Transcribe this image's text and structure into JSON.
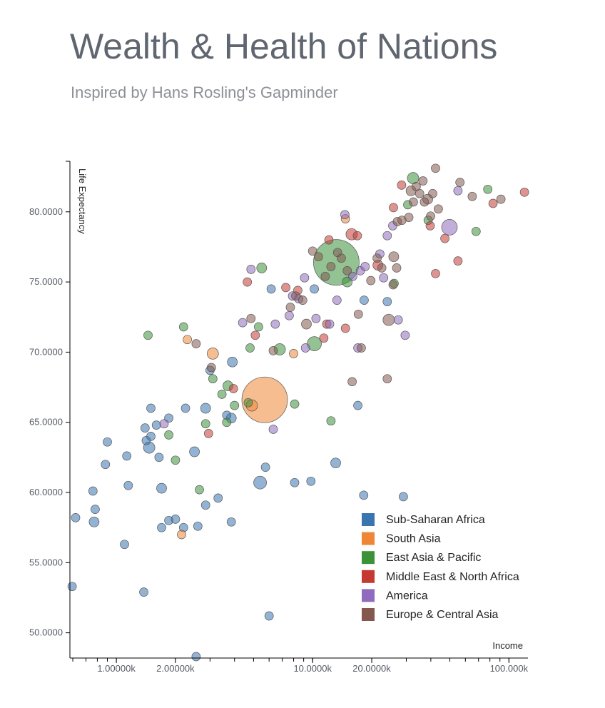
{
  "title": "Wealth & Health of Nations",
  "subtitle": "Inspired by Hans Rosling's Gapminder",
  "chart_data": {
    "type": "scatter",
    "xlabel": "Income",
    "ylabel": "Life Expectancy",
    "x_scale": "log",
    "xlim": [
      580,
      125000
    ],
    "ylim": [
      48.2,
      83.6
    ],
    "x_ticks": [
      {
        "value": 1000,
        "label": "1.00000k"
      },
      {
        "value": 2000,
        "label": "2.00000k"
      },
      {
        "value": 10000,
        "label": "10.0000k"
      },
      {
        "value": 20000,
        "label": "20.0000k"
      },
      {
        "value": 100000,
        "label": "100.000k"
      }
    ],
    "y_ticks": [
      {
        "value": 50,
        "label": "50.0000"
      },
      {
        "value": 55,
        "label": "55.0000"
      },
      {
        "value": 60,
        "label": "60.0000"
      },
      {
        "value": 65,
        "label": "65.0000"
      },
      {
        "value": 70,
        "label": "70.0000"
      },
      {
        "value": 75,
        "label": "75.0000"
      },
      {
        "value": 80,
        "label": "80.0000"
      }
    ],
    "legend_position": "bottom-right",
    "regions": [
      {
        "name": "Sub-Saharan Africa",
        "color": "#3a75b0"
      },
      {
        "name": "South Asia",
        "color": "#ef8636"
      },
      {
        "name": "East Asia & Pacific",
        "color": "#3b9238"
      },
      {
        "name": "Middle East & North Africa",
        "color": "#c53932"
      },
      {
        "name": "America",
        "color": "#8e6bbe"
      },
      {
        "name": "Europe & Central Asia",
        "color": "#84584e"
      }
    ],
    "series": [
      {
        "name": "Sub-Saharan Africa",
        "points": [
          [
            595,
            53.3,
            6
          ],
          [
            620,
            58.2,
            6
          ],
          [
            760,
            60.1,
            6
          ],
          [
            780,
            58.8,
            6
          ],
          [
            770,
            57.9,
            7
          ],
          [
            900,
            63.6,
            6
          ],
          [
            880,
            62.0,
            6
          ],
          [
            1100,
            56.3,
            6
          ],
          [
            1150,
            60.5,
            6
          ],
          [
            1130,
            62.6,
            6
          ],
          [
            1400,
            64.6,
            6
          ],
          [
            1380,
            52.9,
            6
          ],
          [
            1420,
            63.7,
            6
          ],
          [
            1470,
            63.2,
            8
          ],
          [
            1500,
            66.0,
            6
          ],
          [
            1500,
            64.0,
            6
          ],
          [
            1600,
            64.8,
            6
          ],
          [
            1650,
            62.5,
            6
          ],
          [
            1700,
            60.3,
            7
          ],
          [
            1700,
            57.5,
            6
          ],
          [
            1850,
            58.0,
            6
          ],
          [
            1850,
            65.3,
            6
          ],
          [
            2000,
            58.1,
            6
          ],
          [
            2200,
            57.5,
            6
          ],
          [
            2250,
            66.0,
            6
          ],
          [
            2500,
            62.9,
            7
          ],
          [
            2550,
            48.3,
            6
          ],
          [
            2600,
            57.6,
            6
          ],
          [
            2850,
            66.0,
            7
          ],
          [
            2850,
            59.1,
            6
          ],
          [
            3000,
            68.7,
            6
          ],
          [
            3300,
            59.6,
            6
          ],
          [
            3650,
            65.5,
            6
          ],
          [
            3850,
            65.3,
            7
          ],
          [
            3850,
            57.9,
            6
          ],
          [
            3900,
            69.3,
            7
          ],
          [
            5400,
            60.7,
            9
          ],
          [
            5750,
            61.8,
            6
          ],
          [
            6000,
            51.2,
            6
          ],
          [
            6150,
            74.5,
            6
          ],
          [
            8100,
            60.7,
            6
          ],
          [
            9800,
            60.8,
            6
          ],
          [
            10200,
            74.5,
            6
          ],
          [
            13100,
            62.1,
            7
          ],
          [
            17000,
            66.2,
            6
          ],
          [
            18200,
            59.8,
            6
          ],
          [
            18300,
            73.7,
            6
          ],
          [
            24000,
            73.6,
            6
          ],
          [
            29000,
            59.7,
            6
          ]
        ]
      },
      {
        "name": "South Asia",
        "points": [
          [
            2150,
            57.0,
            6
          ],
          [
            2300,
            70.9,
            6
          ],
          [
            3100,
            69.9,
            8
          ],
          [
            4900,
            66.2,
            8
          ],
          [
            5700,
            66.6,
            32
          ],
          [
            8000,
            69.9,
            6
          ],
          [
            14700,
            79.5,
            6
          ]
        ]
      },
      {
        "name": "East Asia & Pacific",
        "points": [
          [
            1450,
            71.2,
            6
          ],
          [
            1850,
            64.1,
            6
          ],
          [
            2000,
            62.3,
            6
          ],
          [
            2200,
            71.8,
            6
          ],
          [
            2650,
            60.2,
            6
          ],
          [
            2850,
            64.9,
            6
          ],
          [
            3100,
            68.1,
            6
          ],
          [
            3450,
            67.0,
            6
          ],
          [
            3650,
            65.0,
            6
          ],
          [
            3700,
            67.6,
            7
          ],
          [
            4000,
            66.2,
            6
          ],
          [
            4700,
            66.4,
            6
          ],
          [
            4800,
            70.3,
            6
          ],
          [
            5300,
            71.8,
            6
          ],
          [
            5500,
            76.0,
            7
          ],
          [
            6800,
            70.2,
            8
          ],
          [
            8100,
            66.3,
            6
          ],
          [
            10200,
            70.6,
            10
          ],
          [
            12400,
            65.1,
            6
          ],
          [
            13200,
            76.4,
            32
          ],
          [
            15000,
            75.0,
            7
          ],
          [
            26000,
            74.9,
            6
          ],
          [
            30500,
            80.5,
            6
          ],
          [
            32500,
            82.4,
            8
          ],
          [
            38800,
            79.4,
            6
          ],
          [
            68000,
            78.6,
            6
          ],
          [
            78000,
            81.6,
            6
          ]
        ]
      },
      {
        "name": "Middle East & North Africa",
        "points": [
          [
            2950,
            64.2,
            6
          ],
          [
            3950,
            67.4,
            6
          ],
          [
            4650,
            75.0,
            6
          ],
          [
            5100,
            71.2,
            6
          ],
          [
            7300,
            74.6,
            6
          ],
          [
            8400,
            74.4,
            6
          ],
          [
            11400,
            71.0,
            6
          ],
          [
            11800,
            72.0,
            6
          ],
          [
            12100,
            78.0,
            6
          ],
          [
            14700,
            71.7,
            6
          ],
          [
            15800,
            78.4,
            8
          ],
          [
            16900,
            78.3,
            6
          ],
          [
            21500,
            76.2,
            7
          ],
          [
            25800,
            80.3,
            6
          ],
          [
            28400,
            81.9,
            6
          ],
          [
            39700,
            79.0,
            6
          ],
          [
            42300,
            75.6,
            6
          ],
          [
            47200,
            78.1,
            6
          ],
          [
            55000,
            76.5,
            6
          ],
          [
            83000,
            80.6,
            6
          ],
          [
            120000,
            81.4,
            6
          ]
        ]
      },
      {
        "name": "America",
        "points": [
          [
            1750,
            64.9,
            6
          ],
          [
            4400,
            72.1,
            6
          ],
          [
            4850,
            75.9,
            6
          ],
          [
            6300,
            64.5,
            6
          ],
          [
            6450,
            72.0,
            6
          ],
          [
            7600,
            72.6,
            6
          ],
          [
            7900,
            74.0,
            6
          ],
          [
            8500,
            73.8,
            6
          ],
          [
            9100,
            75.3,
            6
          ],
          [
            9200,
            70.3,
            6
          ],
          [
            10400,
            72.4,
            6
          ],
          [
            12200,
            72.0,
            6
          ],
          [
            13300,
            73.7,
            6
          ],
          [
            14600,
            79.8,
            6
          ],
          [
            16000,
            75.4,
            6
          ],
          [
            17000,
            70.3,
            6
          ],
          [
            17500,
            75.8,
            6
          ],
          [
            18500,
            76.1,
            6
          ],
          [
            22000,
            77.0,
            6
          ],
          [
            23000,
            75.3,
            6
          ],
          [
            24000,
            78.3,
            6
          ],
          [
            25600,
            79.0,
            6
          ],
          [
            27300,
            72.3,
            6
          ],
          [
            29600,
            71.2,
            6
          ],
          [
            49800,
            78.9,
            11
          ],
          [
            55000,
            81.5,
            6
          ]
        ]
      },
      {
        "name": "Europe & Central Asia",
        "points": [
          [
            2550,
            70.6,
            6
          ],
          [
            3050,
            68.9,
            6
          ],
          [
            4850,
            72.4,
            6
          ],
          [
            6300,
            70.1,
            6
          ],
          [
            7700,
            73.2,
            6
          ],
          [
            8200,
            74.0,
            6
          ],
          [
            8900,
            73.7,
            6
          ],
          [
            9300,
            72.0,
            7
          ],
          [
            10000,
            77.2,
            6
          ],
          [
            10700,
            76.8,
            6
          ],
          [
            11600,
            75.4,
            6
          ],
          [
            12400,
            76.1,
            6
          ],
          [
            13400,
            77.1,
            6
          ],
          [
            14000,
            76.7,
            6
          ],
          [
            15000,
            75.8,
            6
          ],
          [
            15900,
            67.9,
            6
          ],
          [
            17100,
            72.7,
            6
          ],
          [
            17700,
            70.3,
            6
          ],
          [
            19800,
            75.1,
            6
          ],
          [
            21300,
            76.7,
            6
          ],
          [
            22500,
            76.0,
            6
          ],
          [
            24000,
            68.1,
            6
          ],
          [
            24400,
            72.3,
            8
          ],
          [
            25700,
            74.8,
            6
          ],
          [
            25900,
            76.8,
            7
          ],
          [
            26800,
            76.0,
            6
          ],
          [
            27000,
            79.3,
            6
          ],
          [
            28500,
            79.4,
            6
          ],
          [
            30900,
            79.6,
            6
          ],
          [
            31700,
            81.5,
            7
          ],
          [
            32600,
            80.7,
            6
          ],
          [
            33700,
            81.8,
            6
          ],
          [
            35100,
            81.3,
            6
          ],
          [
            36500,
            82.2,
            6
          ],
          [
            37100,
            80.7,
            6
          ],
          [
            38600,
            80.9,
            7
          ],
          [
            39900,
            79.7,
            6
          ],
          [
            40900,
            81.3,
            6
          ],
          [
            42300,
            83.1,
            6
          ],
          [
            43700,
            80.2,
            6
          ],
          [
            56300,
            82.1,
            6
          ],
          [
            65000,
            81.1,
            6
          ],
          [
            91000,
            80.9,
            6
          ]
        ]
      }
    ]
  }
}
